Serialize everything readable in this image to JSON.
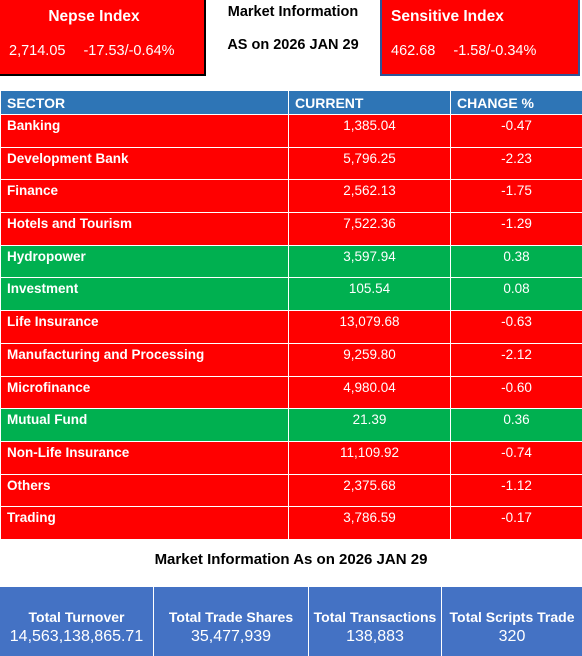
{
  "header": {
    "nepse": {
      "title": "Nepse Index",
      "value": "2,714.05",
      "change": "-17.53/-0.64%"
    },
    "center": {
      "line1": "Market Information",
      "line2": "AS on 2026 JAN 29"
    },
    "sensitive": {
      "title": "Sensitive Index",
      "value": "462.68",
      "change": "-1.58/-0.34%"
    }
  },
  "table": {
    "headers": [
      "SECTOR",
      "CURRENT",
      "CHANGE %"
    ],
    "rows": [
      {
        "sector": "Banking",
        "current": "1,385.04",
        "change": "-0.47",
        "status": "neg"
      },
      {
        "sector": "Development Bank",
        "current": "5,796.25",
        "change": "-2.23",
        "status": "neg"
      },
      {
        "sector": "Finance",
        "current": "2,562.13",
        "change": "-1.75",
        "status": "neg"
      },
      {
        "sector": "Hotels and Tourism",
        "current": "7,522.36",
        "change": "-1.29",
        "status": "neg"
      },
      {
        "sector": "Hydropower",
        "current": "3,597.94",
        "change": "0.38",
        "status": "pos"
      },
      {
        "sector": "Investment",
        "current": "105.54",
        "change": "0.08",
        "status": "pos"
      },
      {
        "sector": "Life Insurance",
        "current": "13,079.68",
        "change": "-0.63",
        "status": "neg"
      },
      {
        "sector": "Manufacturing and Processing",
        "current": "9,259.80",
        "change": "-2.12",
        "status": "neg"
      },
      {
        "sector": "Microfinance",
        "current": "4,980.04",
        "change": "-0.60",
        "status": "neg"
      },
      {
        "sector": "Mutual Fund",
        "current": "21.39",
        "change": "0.36",
        "status": "pos"
      },
      {
        "sector": "Non-Life Insurance",
        "current": "11,109.92",
        "change": "-0.74",
        "status": "neg"
      },
      {
        "sector": "Others",
        "current": "2,375.68",
        "change": "-1.12",
        "status": "neg"
      },
      {
        "sector": "Trading",
        "current": "3,786.59",
        "change": "-0.17",
        "status": "neg"
      }
    ]
  },
  "footer": {
    "title": "Market Information As on 2026 JAN 29",
    "stats": [
      {
        "label": "Total Turnover",
        "value": "14,563,138,865.71"
      },
      {
        "label": "Total Trade Shares",
        "value": "35,477,939"
      },
      {
        "label": "Total Transactions",
        "value": "138,883"
      },
      {
        "label": "Total Scripts Trade",
        "value": "320"
      }
    ]
  },
  "colors": {
    "negative": "#ff0000",
    "positive": "#00b050",
    "header_blue": "#2e75b6",
    "footer_blue": "#4472c4"
  }
}
